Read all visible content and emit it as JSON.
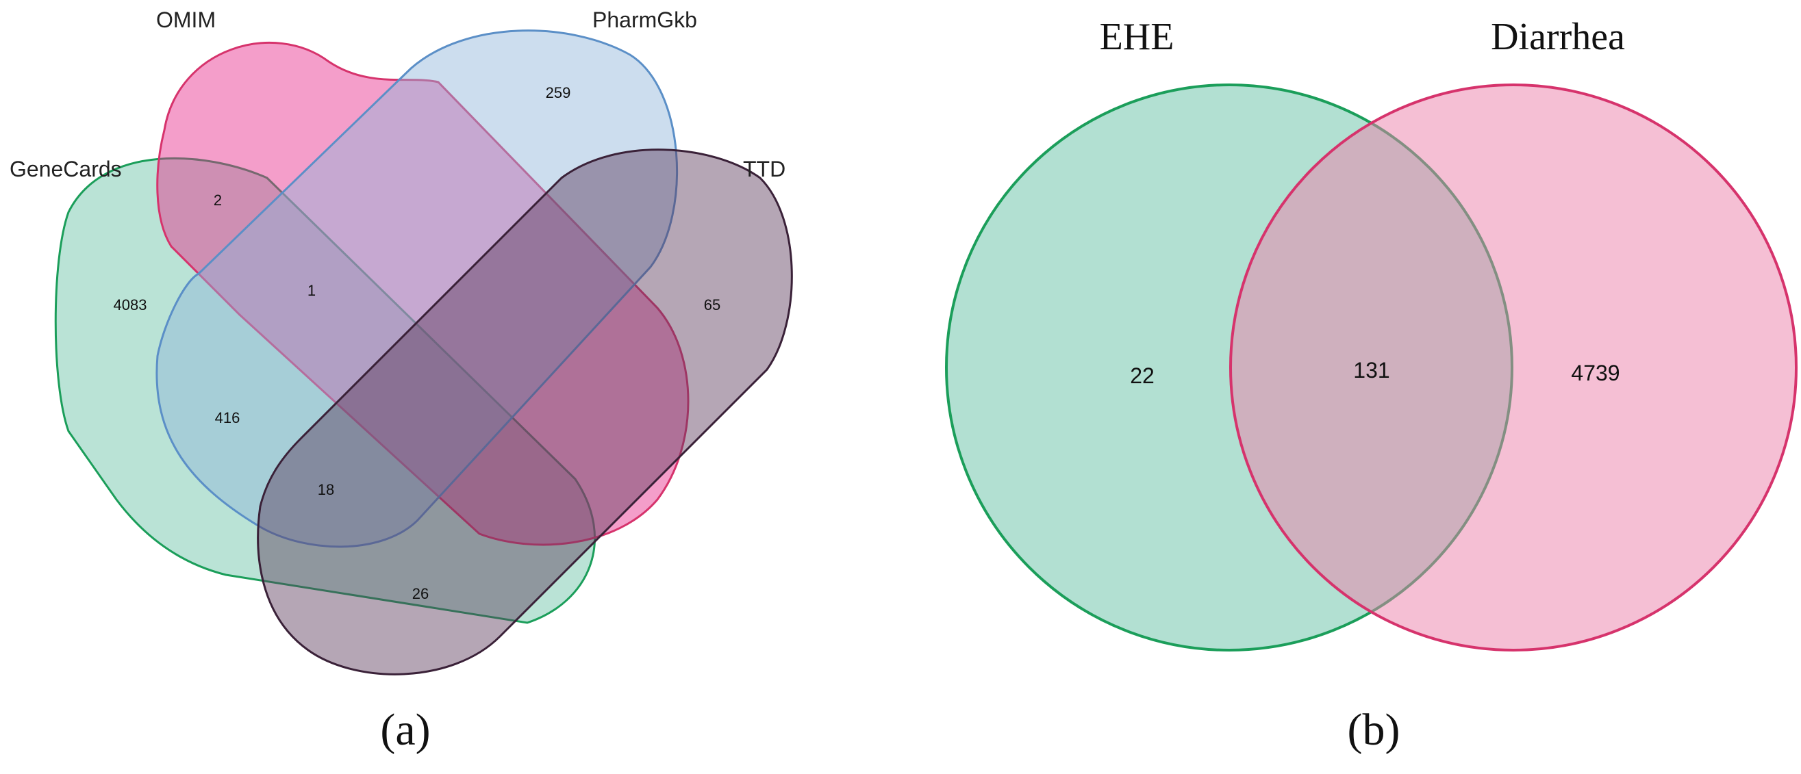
{
  "panel_a": {
    "letter": "(a)",
    "sets": [
      {
        "name": "GeneCards",
        "fill": "#66c2a5",
        "stroke": "#1b9e5a"
      },
      {
        "name": "OMIM",
        "fill": "#e7298a",
        "stroke": "#d6336c"
      },
      {
        "name": "PharmGkb",
        "fill": "#8fb3d9",
        "stroke": "#5b8fc7"
      },
      {
        "name": "TTD",
        "fill": "#5c3a5a",
        "stroke": "#3a2138"
      }
    ],
    "counts": {
      "genecards_only": "4083",
      "genecards_omim": "2",
      "genecards_omim_pharmgkb": "1",
      "genecards_pharmgkb": "416",
      "genecards_pharmgkb_ttd": "18",
      "genecards_ttd": "26",
      "pharmgkb_only": "259",
      "ttd_only": "65"
    }
  },
  "panel_b": {
    "letter": "(b)",
    "sets": [
      {
        "name": "EHE",
        "fill": "#66c2a5",
        "stroke": "#1b9e5a"
      },
      {
        "name": "Diarrhea",
        "fill": "#ec7fa9",
        "stroke": "#d6336c"
      }
    ],
    "counts": {
      "ehe_only": "22",
      "intersection": "131",
      "diarrhea_only": "4739"
    }
  }
}
